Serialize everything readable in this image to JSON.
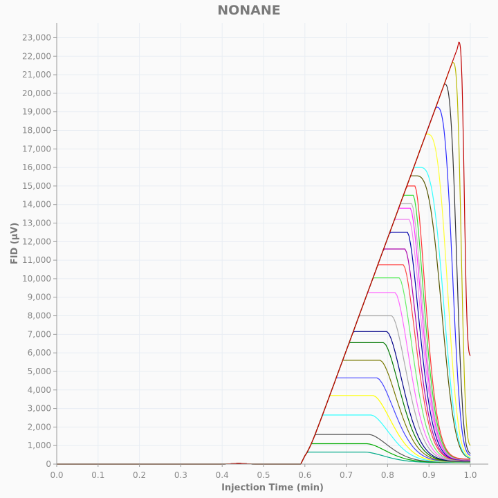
{
  "chart_data": {
    "type": "line",
    "title": "NONANE",
    "xlabel": "Injection Time (min)",
    "ylabel": "FID (µV)",
    "xlim": [
      0,
      1.0
    ],
    "ylim": [
      0,
      23800
    ],
    "x_ticks": [
      0.0,
      0.1,
      0.2,
      0.3,
      0.4,
      0.5,
      0.6,
      0.7,
      0.8,
      0.9,
      1.0
    ],
    "x_tick_labels": [
      "0.0",
      "0.1",
      "0.2",
      "0.3",
      "0.4",
      "0.5",
      "0.6",
      "0.7",
      "0.8",
      "0.9",
      "1.0"
    ],
    "y_ticks": [
      0,
      1000,
      2000,
      3000,
      4000,
      5000,
      6000,
      7000,
      8000,
      9000,
      10000,
      11000,
      12000,
      13000,
      14000,
      15000,
      16000,
      17000,
      18000,
      19000,
      20000,
      21000,
      22000,
      23000
    ],
    "y_tick_labels": [
      "0",
      "1,000",
      "2,000",
      "3,000",
      "4,000",
      "5,000",
      "6,000",
      "7,000",
      "8,000",
      "9,000",
      "10,000",
      "11,000",
      "12,000",
      "13,000",
      "14,000",
      "15,000",
      "16,000",
      "17,000",
      "18,000",
      "19,000",
      "20,000",
      "21,000",
      "22,000",
      "23,000"
    ],
    "grid": true,
    "legend": "none",
    "curve_model": {
      "baseline_end_x": 0.6,
      "front_slope_per_min": 60600,
      "front_offset_x": 0.596,
      "end_x": 1.0
    },
    "series": [
      {
        "peak_x": 0.972,
        "peak_y": 22750,
        "color": "#c00000",
        "tail_end_y": 5800
      },
      {
        "peak_x": 0.958,
        "peak_y": 21650,
        "color": "#b8b800",
        "tail_end_y": 950
      },
      {
        "peak_x": 0.937,
        "peak_y": 20500,
        "color": "#333333",
        "tail_end_y": 520
      },
      {
        "peak_x": 0.918,
        "peak_y": 19250,
        "color": "#2b2bff",
        "tail_end_y": 420
      },
      {
        "peak_x": 0.895,
        "peak_y": 17800,
        "color": "#ffff33",
        "tail_end_y": 340
      },
      {
        "peak_x": 0.878,
        "peak_y": 16000,
        "color": "#33ffff",
        "tail_end_y": 300
      },
      {
        "peak_x": 0.868,
        "peak_y": 15550,
        "color": "#555500",
        "tail_end_y": 280
      },
      {
        "peak_x": 0.866,
        "peak_y": 15000,
        "color": "#ff3333",
        "tail_end_y": 270
      },
      {
        "peak_x": 0.862,
        "peak_y": 14500,
        "color": "#33dd33",
        "tail_end_y": 260
      },
      {
        "peak_x": 0.858,
        "peak_y": 14050,
        "color": "#bbbbbb",
        "tail_end_y": 250
      },
      {
        "peak_x": 0.855,
        "peak_y": 13800,
        "color": "#ff33ff",
        "tail_end_y": 240
      },
      {
        "peak_x": 0.852,
        "peak_y": 13200,
        "color": "#ee88ee",
        "tail_end_y": 230
      },
      {
        "peak_x": 0.848,
        "peak_y": 12500,
        "color": "#0000aa",
        "tail_end_y": 220
      },
      {
        "peak_x": 0.842,
        "peak_y": 11600,
        "color": "#aa00aa",
        "tail_end_y": 210
      },
      {
        "peak_x": 0.838,
        "peak_y": 10750,
        "color": "#ff4444",
        "tail_end_y": 200
      },
      {
        "peak_x": 0.828,
        "peak_y": 10050,
        "color": "#66ee66",
        "tail_end_y": 190
      },
      {
        "peak_x": 0.818,
        "peak_y": 9250,
        "color": "#ff66ff",
        "tail_end_y": 180
      },
      {
        "peak_x": 0.81,
        "peak_y": 8000,
        "color": "#aaaaaa",
        "tail_end_y": 170
      },
      {
        "peak_x": 0.798,
        "peak_y": 7150,
        "color": "#000088",
        "tail_end_y": 160
      },
      {
        "peak_x": 0.79,
        "peak_y": 6550,
        "color": "#007700",
        "tail_end_y": 150
      },
      {
        "peak_x": 0.782,
        "peak_y": 5600,
        "color": "#777700",
        "tail_end_y": 140
      },
      {
        "peak_x": 0.774,
        "peak_y": 4650,
        "color": "#4444ff",
        "tail_end_y": 130
      },
      {
        "peak_x": 0.765,
        "peak_y": 3700,
        "color": "#ffff00",
        "tail_end_y": 120
      },
      {
        "peak_x": 0.76,
        "peak_y": 2650,
        "color": "#33ffff",
        "tail_end_y": 110
      },
      {
        "peak_x": 0.755,
        "peak_y": 1600,
        "color": "#555555",
        "tail_end_y": 100
      },
      {
        "peak_x": 0.75,
        "peak_y": 1100,
        "color": "#00aa00",
        "tail_end_y": 90
      },
      {
        "peak_x": 0.745,
        "peak_y": 650,
        "color": "#00aa88",
        "tail_end_y": 80
      }
    ]
  }
}
